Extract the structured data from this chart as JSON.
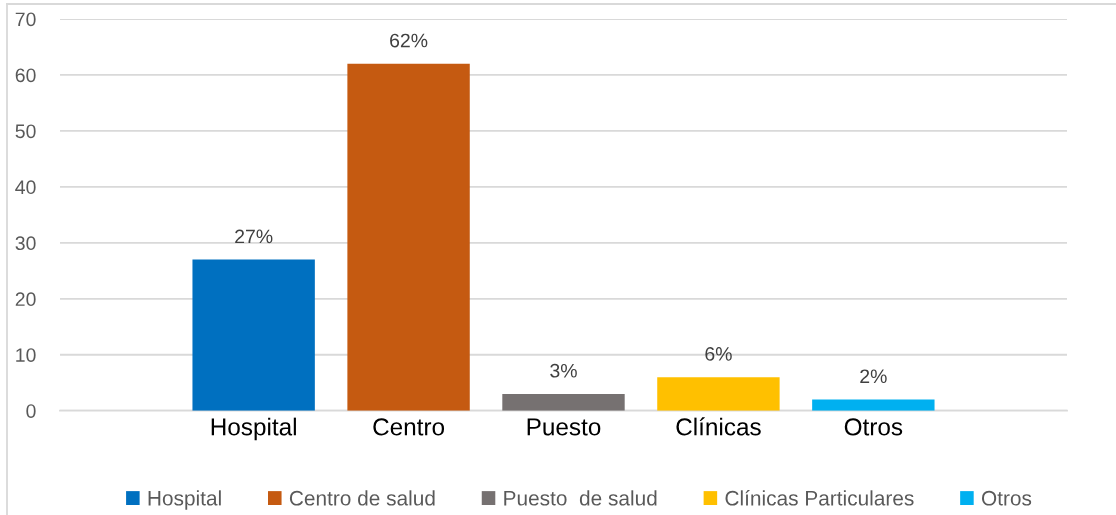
{
  "chart_data": {
    "type": "bar",
    "categories": [
      "Hospital",
      "Centro",
      "Puesto",
      "Clínicas",
      "Otros"
    ],
    "series": [
      {
        "name": "Hospital",
        "color": "#0070c0",
        "values": [
          27,
          null,
          null,
          null,
          null
        ],
        "value_labels": [
          "27%",
          null,
          null,
          null,
          null
        ]
      },
      {
        "name": "Centro de salud",
        "color": "#c55a11",
        "values": [
          null,
          62,
          null,
          null,
          null
        ],
        "value_labels": [
          null,
          "62%",
          null,
          null,
          null
        ]
      },
      {
        "name": "Puesto  de salud",
        "color": "#767171",
        "values": [
          null,
          null,
          3,
          null,
          null
        ],
        "value_labels": [
          null,
          null,
          "3%",
          null,
          null
        ]
      },
      {
        "name": "Clínicas Particulares",
        "color": "#ffc000",
        "values": [
          null,
          null,
          null,
          6,
          null
        ],
        "value_labels": [
          null,
          null,
          null,
          "6%",
          null
        ]
      },
      {
        "name": "Otros",
        "color": "#00b0f0",
        "values": [
          null,
          null,
          null,
          null,
          2
        ],
        "value_labels": [
          null,
          null,
          null,
          null,
          "2%"
        ]
      }
    ],
    "ylim": [
      0,
      70
    ],
    "yticks": [
      0,
      10,
      20,
      30,
      40,
      50,
      60,
      70
    ],
    "grid": "y",
    "legend": "bottom"
  }
}
